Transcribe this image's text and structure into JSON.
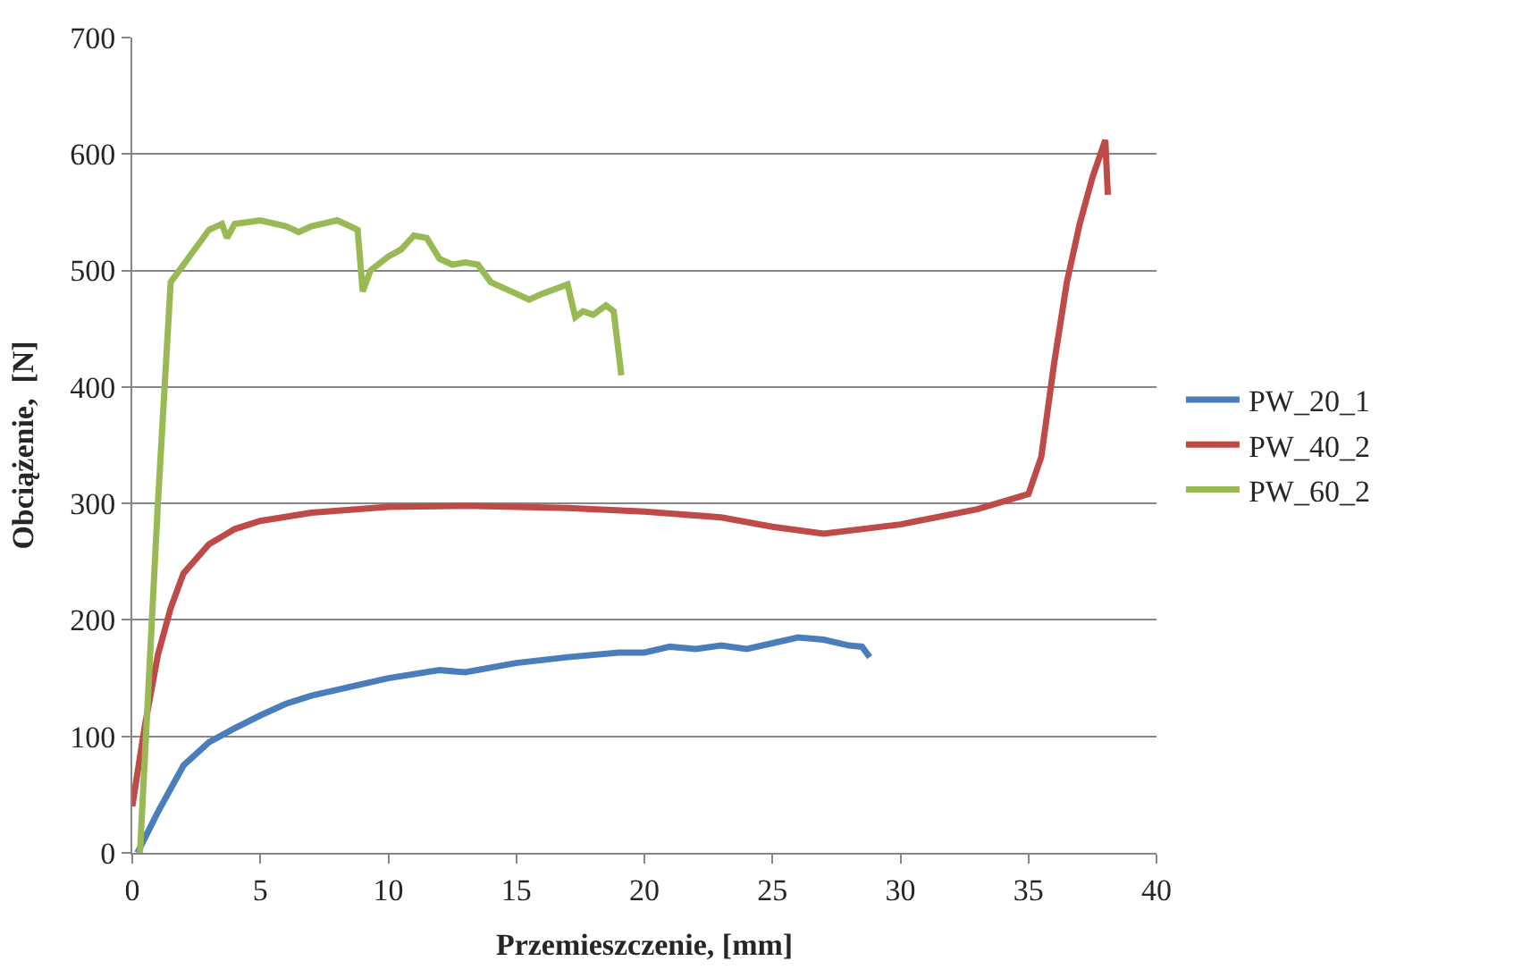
{
  "chart_data": {
    "type": "line",
    "xlabel": "Przemieszczenie, [mm]",
    "ylabel": "Obciążenie,  [N]",
    "xlim": [
      0,
      40
    ],
    "xticks": [
      0,
      5,
      10,
      15,
      20,
      25,
      30,
      35,
      40
    ],
    "ylim": [
      0,
      700
    ],
    "yticks": [
      0,
      100,
      200,
      300,
      400,
      500,
      600,
      700
    ],
    "grid": "y",
    "legend": "right",
    "marker": "none",
    "line_style": "solid",
    "series": [
      {
        "name": "PW_20_1",
        "color": "#4a7ebb",
        "x": [
          0.2,
          1,
          2,
          3,
          4,
          5,
          6,
          7,
          8,
          9,
          10,
          12,
          13,
          15,
          17,
          19,
          20,
          21,
          22,
          23,
          24,
          25,
          26,
          27,
          28,
          28.5,
          28.8
        ],
        "values": [
          0,
          35,
          75,
          95,
          107,
          118,
          128,
          135,
          140,
          145,
          150,
          157,
          155,
          163,
          168,
          172,
          172,
          177,
          175,
          178,
          175,
          180,
          185,
          183,
          178,
          177,
          168
        ]
      },
      {
        "name": "PW_40_2",
        "color": "#be4b48",
        "x": [
          0,
          0.5,
          1,
          1.5,
          2,
          3,
          4,
          5,
          7,
          10,
          13,
          17,
          20,
          23,
          25,
          27,
          30,
          33,
          35,
          35.5,
          36,
          36.5,
          37,
          37.5,
          38,
          38.1
        ],
        "values": [
          40,
          110,
          170,
          210,
          240,
          265,
          278,
          285,
          292,
          297,
          298,
          296,
          293,
          288,
          280,
          274,
          282,
          295,
          308,
          340,
          420,
          490,
          540,
          580,
          612,
          565
        ]
      },
      {
        "name": "PW_60_2",
        "color": "#98b954",
        "x": [
          0.3,
          1,
          1.5,
          2,
          2.5,
          3,
          3.5,
          3.7,
          4,
          5,
          6,
          6.5,
          7,
          8,
          8.5,
          8.8,
          9,
          9.3,
          10,
          10.5,
          11,
          11.5,
          12,
          12.5,
          13,
          13.5,
          14,
          15,
          15.5,
          16,
          17,
          17.3,
          17.6,
          18,
          18.5,
          18.8,
          19.1
        ],
        "values": [
          0,
          300,
          490,
          505,
          520,
          535,
          540,
          528,
          540,
          543,
          538,
          533,
          538,
          543,
          538,
          535,
          482,
          500,
          512,
          518,
          530,
          528,
          510,
          505,
          507,
          505,
          490,
          480,
          475,
          480,
          488,
          460,
          465,
          462,
          470,
          465,
          410
        ]
      }
    ]
  }
}
